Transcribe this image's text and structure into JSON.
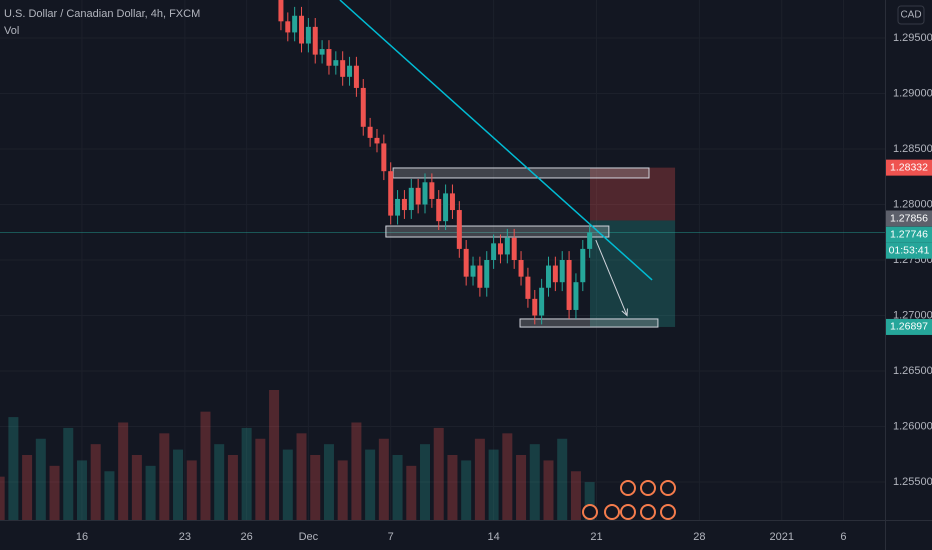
{
  "header": {
    "symbol": "U.S. Dollar / Canadian Dollar, 4h, FXCM",
    "indicator": "Vol",
    "currency": "CAD"
  },
  "chart_data": {
    "type": "candlestick",
    "up_color": "#26a69a",
    "down_color": "#ef5350",
    "xlim": [
      -23.9,
      234.1
    ],
    "ylim": [
      1.25158,
      1.29842
    ],
    "xticks": [
      {
        "value": 0,
        "label": "16"
      },
      {
        "value": 30,
        "label": "23"
      },
      {
        "value": 48,
        "label": "26"
      },
      {
        "value": 66,
        "label": "Dec"
      },
      {
        "value": 90,
        "label": "7"
      },
      {
        "value": 120,
        "label": "14"
      },
      {
        "value": 150,
        "label": "21"
      },
      {
        "value": 180,
        "label": "28"
      },
      {
        "value": 204,
        "label": "2021"
      },
      {
        "value": 222,
        "label": "6"
      }
    ],
    "yticks": [
      {
        "value": 1.255,
        "label": "1.25500"
      },
      {
        "value": 1.26,
        "label": "1.26000"
      },
      {
        "value": 1.265,
        "label": "1.26500"
      },
      {
        "value": 1.27,
        "label": "1.27000"
      },
      {
        "value": 1.275,
        "label": "1.27500"
      },
      {
        "value": 1.28,
        "label": "1.28000"
      },
      {
        "value": 1.285,
        "label": "1.28500"
      },
      {
        "value": 1.29,
        "label": "1.29000"
      },
      {
        "value": 1.295,
        "label": "1.29500"
      }
    ],
    "grid": true,
    "x": [
      58,
      60,
      62,
      64,
      66,
      68,
      70,
      72,
      74,
      76,
      78,
      80,
      82,
      84,
      86,
      88,
      90,
      92,
      94,
      96,
      98,
      100,
      102,
      104,
      106,
      108,
      110,
      112,
      114,
      116,
      118,
      120,
      122,
      124,
      126,
      128,
      130,
      132,
      134,
      136,
      138,
      140,
      142,
      144,
      146,
      148
    ],
    "open": [
      1.2985,
      1.2965,
      1.2955,
      1.297,
      1.2945,
      1.296,
      1.2935,
      1.294,
      1.2925,
      1.293,
      1.2915,
      1.2925,
      1.2905,
      1.287,
      1.286,
      1.2855,
      1.283,
      1.279,
      1.2805,
      1.2795,
      1.2815,
      1.28,
      1.282,
      1.2805,
      1.2785,
      1.281,
      1.2795,
      1.276,
      1.2735,
      1.2745,
      1.2725,
      1.275,
      1.2765,
      1.2755,
      1.277,
      1.275,
      1.2735,
      1.2715,
      1.27,
      1.2725,
      1.2745,
      1.273,
      1.275,
      1.2705,
      1.273,
      1.276
    ],
    "high": [
      1.2993,
      1.2973,
      1.2978,
      1.2978,
      1.2968,
      1.2968,
      1.2948,
      1.2948,
      1.2938,
      1.2938,
      1.2933,
      1.2933,
      1.2913,
      1.2878,
      1.2868,
      1.2863,
      1.2838,
      1.2813,
      1.2813,
      1.2823,
      1.2823,
      1.2828,
      1.2828,
      1.2813,
      1.2818,
      1.2818,
      1.2803,
      1.2768,
      1.2753,
      1.2753,
      1.2758,
      1.2773,
      1.2773,
      1.2778,
      1.2778,
      1.2758,
      1.2743,
      1.2723,
      1.2733,
      1.2753,
      1.2753,
      1.2758,
      1.2758,
      1.2738,
      1.2768,
      1.2783
    ],
    "low": [
      1.2957,
      1.2947,
      1.2947,
      1.2937,
      1.2937,
      1.2927,
      1.2927,
      1.2917,
      1.2917,
      1.2907,
      1.2907,
      1.2897,
      1.2862,
      1.2852,
      1.2847,
      1.2822,
      1.2782,
      1.2782,
      1.2787,
      1.2787,
      1.2792,
      1.2792,
      1.2797,
      1.2777,
      1.2777,
      1.2787,
      1.2752,
      1.2727,
      1.2727,
      1.2717,
      1.2717,
      1.2742,
      1.2747,
      1.2747,
      1.2742,
      1.2727,
      1.2707,
      1.2692,
      1.2692,
      1.2717,
      1.2722,
      1.2722,
      1.2697,
      1.2697,
      1.2722,
      1.2752
    ],
    "close": [
      1.2965,
      1.2955,
      1.297,
      1.2945,
      1.296,
      1.2935,
      1.294,
      1.2925,
      1.293,
      1.2915,
      1.2925,
      1.2905,
      1.287,
      1.286,
      1.2855,
      1.283,
      1.279,
      1.2805,
      1.2795,
      1.2815,
      1.28,
      1.282,
      1.2805,
      1.2785,
      1.281,
      1.2795,
      1.276,
      1.2735,
      1.2745,
      1.2725,
      1.275,
      1.2765,
      1.2755,
      1.277,
      1.275,
      1.2735,
      1.2715,
      1.27,
      1.2725,
      1.2745,
      1.273,
      1.275,
      1.2705,
      1.273,
      1.276,
      1.2775
    ],
    "volume": {
      "x": [
        -24,
        -20,
        -16,
        -12,
        -8,
        -4,
        0,
        4,
        8,
        12,
        16,
        20,
        24,
        28,
        32,
        36,
        40,
        44,
        48,
        52,
        56,
        60,
        64,
        68,
        72,
        76,
        80,
        84,
        88,
        92,
        96,
        100,
        104,
        108,
        112,
        116,
        120,
        124,
        128,
        132,
        136,
        140,
        144,
        148
      ],
      "values": [
        40,
        95,
        60,
        75,
        50,
        85,
        55,
        70,
        45,
        90,
        60,
        50,
        80,
        65,
        55,
        100,
        70,
        60,
        85,
        75,
        120,
        65,
        80,
        60,
        70,
        55,
        90,
        65,
        75,
        60,
        50,
        70,
        85,
        60,
        55,
        75,
        65,
        80,
        60,
        70,
        55,
        75,
        45,
        35
      ],
      "up": [
        false,
        true,
        false,
        true,
        false,
        true,
        true,
        false,
        true,
        false,
        false,
        true,
        false,
        true,
        false,
        false,
        true,
        false,
        true,
        false,
        false,
        true,
        false,
        false,
        true,
        false,
        false,
        true,
        false,
        true,
        false,
        true,
        false,
        false,
        true,
        false,
        true,
        false,
        false,
        true,
        false,
        true,
        false,
        true
      ]
    },
    "trendline": {
      "color": "#00bcd4",
      "x": [
        75.2,
        166.2
      ],
      "y": [
        1.29842,
        1.2732
      ]
    },
    "zones": [
      {
        "x": [
          90.7,
          165.3
        ],
        "y": [
          1.28239,
          1.28329
        ]
      },
      {
        "x": [
          88.6,
          153.6
        ],
        "y": [
          1.27707,
          1.27806
        ]
      },
      {
        "x": [
          127.7,
          167.9
        ],
        "y": [
          1.26896,
          1.26969
        ]
      }
    ],
    "arrow": {
      "x": [
        149.8,
        158.9
      ],
      "y": [
        1.2768,
        1.27
      ]
    },
    "position": {
      "x": [
        148.1,
        172.9
      ],
      "stop": 1.28332,
      "entry": 1.27856,
      "target": 1.26897
    },
    "last_price": 1.27746,
    "countdown": "01:53:41"
  }
}
